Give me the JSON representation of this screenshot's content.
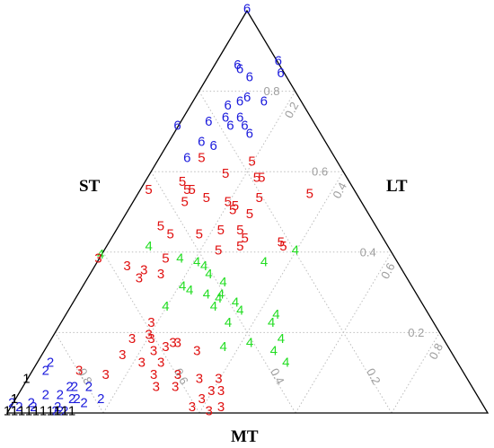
{
  "chart_data": {
    "type": "scatter",
    "subtype": "ternary",
    "title": "",
    "axes": [
      "ST",
      "LT",
      "MT"
    ],
    "vertex_labels": {
      "left": "ST",
      "right": "LT",
      "bottom": "MT"
    },
    "ticks": [
      "0.2",
      "0.4",
      "0.6",
      "0.8"
    ],
    "grid": true,
    "grid_color": "#bdbdbd",
    "tick_color": "#9e9e9e",
    "group_colors": {
      "1": "#000000",
      "2": "#1a1adc",
      "3": "#e01010",
      "4": "#22dd22",
      "5": "#e01010",
      "6": "#1a1adc"
    },
    "note": "",
    "points": [
      {
        "label": "6",
        "top": 1.0,
        "right": 0.0
      },
      {
        "label": "6",
        "top": 0.86,
        "right": 0.05
      },
      {
        "label": "6",
        "top": 0.85,
        "right": 0.06
      },
      {
        "label": "6",
        "top": 0.83,
        "right": 0.09
      },
      {
        "label": "6",
        "top": 0.87,
        "right": 0.13
      },
      {
        "label": "6",
        "top": 0.84,
        "right": 0.15
      },
      {
        "label": "6",
        "top": 0.76,
        "right": 0.08
      },
      {
        "label": "6",
        "top": 0.77,
        "right": 0.1
      },
      {
        "label": "6",
        "top": 0.78,
        "right": 0.11
      },
      {
        "label": "6",
        "top": 0.72,
        "right": 0.06
      },
      {
        "label": "6",
        "top": 0.71,
        "right": 0.11
      },
      {
        "label": "6",
        "top": 0.71,
        "right": 0.14
      },
      {
        "label": "6",
        "top": 0.67,
        "right": 0.07
      },
      {
        "label": "6",
        "top": 0.71,
        "right": 0.0
      },
      {
        "label": "6",
        "top": 0.77,
        "right": 0.15
      },
      {
        "label": "6",
        "top": 0.73,
        "right": 0.09
      },
      {
        "label": "6",
        "top": 0.73,
        "right": 0.12
      },
      {
        "label": "6",
        "top": 0.69,
        "right": 0.16
      },
      {
        "label": "6",
        "top": 0.66,
        "right": 0.1
      },
      {
        "label": "6",
        "top": 0.63,
        "right": 0.06
      },
      {
        "label": "5",
        "top": 0.63,
        "right": 0.09
      },
      {
        "label": "5",
        "top": 0.62,
        "right": 0.2
      },
      {
        "label": "5",
        "top": 0.57,
        "right": 0.08
      },
      {
        "label": "5",
        "top": 0.59,
        "right": 0.16
      },
      {
        "label": "5",
        "top": 0.58,
        "right": 0.23
      },
      {
        "label": "5",
        "top": 0.58,
        "right": 0.24
      },
      {
        "label": "5",
        "top": 0.55,
        "right": 0.02
      },
      {
        "label": "5",
        "top": 0.55,
        "right": 0.1
      },
      {
        "label": "5",
        "top": 0.55,
        "right": 0.11
      },
      {
        "label": "5",
        "top": 0.53,
        "right": 0.26
      },
      {
        "label": "5",
        "top": 0.52,
        "right": 0.11
      },
      {
        "label": "5",
        "top": 0.53,
        "right": 0.15
      },
      {
        "label": "5",
        "top": 0.52,
        "right": 0.2
      },
      {
        "label": "5",
        "top": 0.51,
        "right": 0.22
      },
      {
        "label": "5",
        "top": 0.54,
        "right": 0.36
      },
      {
        "label": "5",
        "top": 0.5,
        "right": 0.22
      },
      {
        "label": "5",
        "top": 0.49,
        "right": 0.26
      },
      {
        "label": "5",
        "top": 0.46,
        "right": 0.09
      },
      {
        "label": "5",
        "top": 0.45,
        "right": 0.22
      },
      {
        "label": "5",
        "top": 0.45,
        "right": 0.26
      },
      {
        "label": "5",
        "top": 0.44,
        "right": 0.12
      },
      {
        "label": "5",
        "top": 0.44,
        "right": 0.18
      },
      {
        "label": "5",
        "top": 0.43,
        "right": 0.28
      },
      {
        "label": "5",
        "top": 0.41,
        "right": 0.28
      },
      {
        "label": "5",
        "top": 0.42,
        "right": 0.36
      },
      {
        "label": "5",
        "top": 0.41,
        "right": 0.37
      },
      {
        "label": "5",
        "top": 0.4,
        "right": 0.24
      },
      {
        "label": "5",
        "top": 0.38,
        "right": 0.14
      },
      {
        "label": "4",
        "top": 0.38,
        "right": 0.17
      },
      {
        "label": "4",
        "top": 0.36,
        "right": 0.23
      },
      {
        "label": "4",
        "top": 0.4,
        "right": 0.4
      },
      {
        "label": "4",
        "top": 0.37,
        "right": 0.21
      },
      {
        "label": "4",
        "top": 0.37,
        "right": 0.35
      },
      {
        "label": "4",
        "top": 0.34,
        "right": 0.25
      },
      {
        "label": "4",
        "top": 0.32,
        "right": 0.29
      },
      {
        "label": "4",
        "top": 0.31,
        "right": 0.21
      },
      {
        "label": "4",
        "top": 0.3,
        "right": 0.23
      },
      {
        "label": "4",
        "top": 0.29,
        "right": 0.27
      },
      {
        "label": "4",
        "top": 0.29,
        "right": 0.3
      },
      {
        "label": "4",
        "top": 0.28,
        "right": 0.3
      },
      {
        "label": "4",
        "top": 0.27,
        "right": 0.34
      },
      {
        "label": "4",
        "top": 0.26,
        "right": 0.2
      },
      {
        "label": "4",
        "top": 0.26,
        "right": 0.3
      },
      {
        "label": "4",
        "top": 0.25,
        "right": 0.36
      },
      {
        "label": "4",
        "top": 0.24,
        "right": 0.44
      },
      {
        "label": "4",
        "top": 0.22,
        "right": 0.35
      },
      {
        "label": "4",
        "top": 0.22,
        "right": 0.44
      },
      {
        "label": "4",
        "top": 0.18,
        "right": 0.48
      },
      {
        "label": "4",
        "top": 0.16,
        "right": 0.37
      },
      {
        "label": "4",
        "top": 0.17,
        "right": 0.42
      },
      {
        "label": "4",
        "top": 0.15,
        "right": 0.48
      },
      {
        "label": "4",
        "top": 0.12,
        "right": 0.52
      },
      {
        "label": "4",
        "top": 0.39,
        "right": 0.0
      },
      {
        "label": "4",
        "top": 0.41,
        "right": 0.09
      },
      {
        "label": "3",
        "top": 0.38,
        "right": 0.0
      },
      {
        "label": "3",
        "top": 0.36,
        "right": 0.07
      },
      {
        "label": "3",
        "top": 0.35,
        "right": 0.11
      },
      {
        "label": "3",
        "top": 0.33,
        "right": 0.11
      },
      {
        "label": "3",
        "top": 0.34,
        "right": 0.15
      },
      {
        "label": "3",
        "top": 0.22,
        "right": 0.19
      },
      {
        "label": "3",
        "top": 0.19,
        "right": 0.2
      },
      {
        "label": "3",
        "top": 0.18,
        "right": 0.17
      },
      {
        "label": "3",
        "top": 0.18,
        "right": 0.21
      },
      {
        "label": "3",
        "top": 0.17,
        "right": 0.26
      },
      {
        "label": "3",
        "top": 0.17,
        "right": 0.27
      },
      {
        "label": "3",
        "top": 0.16,
        "right": 0.25
      },
      {
        "label": "3",
        "top": 0.14,
        "right": 0.17
      },
      {
        "label": "3",
        "top": 0.15,
        "right": 0.23
      },
      {
        "label": "3",
        "top": 0.15,
        "right": 0.32
      },
      {
        "label": "3",
        "top": 0.12,
        "right": 0.22
      },
      {
        "label": "3",
        "top": 0.12,
        "right": 0.26
      },
      {
        "label": "3",
        "top": 0.1,
        "right": 0.1
      },
      {
        "label": "3",
        "top": 0.09,
        "right": 0.16
      },
      {
        "label": "3",
        "top": 0.09,
        "right": 0.26
      },
      {
        "label": "3",
        "top": 0.09,
        "right": 0.31
      },
      {
        "label": "3",
        "top": 0.08,
        "right": 0.36
      },
      {
        "label": "3",
        "top": 0.08,
        "right": 0.4
      },
      {
        "label": "3",
        "top": 0.06,
        "right": 0.28
      },
      {
        "label": "3",
        "top": 0.06,
        "right": 0.32
      },
      {
        "label": "3",
        "top": 0.05,
        "right": 0.4
      },
      {
        "label": "3",
        "top": 0.05,
        "right": 0.42
      },
      {
        "label": "3",
        "top": 0.03,
        "right": 0.39
      },
      {
        "label": "3",
        "top": 0.01,
        "right": 0.38
      },
      {
        "label": "3",
        "top": 0.0,
        "right": 0.42
      },
      {
        "label": "3",
        "top": 0.01,
        "right": 0.44
      },
      {
        "label": "2",
        "top": 0.12,
        "right": 0.03
      },
      {
        "label": "2",
        "top": 0.1,
        "right": 0.03
      },
      {
        "label": "2",
        "top": 0.06,
        "right": 0.1
      },
      {
        "label": "2",
        "top": 0.06,
        "right": 0.11
      },
      {
        "label": "2",
        "top": 0.06,
        "right": 0.14
      },
      {
        "label": "2",
        "top": 0.04,
        "right": 0.06
      },
      {
        "label": "2",
        "top": 0.04,
        "right": 0.09
      },
      {
        "label": "2",
        "top": 0.03,
        "right": 0.12
      },
      {
        "label": "2",
        "top": 0.03,
        "right": 0.13
      },
      {
        "label": "2",
        "top": 0.03,
        "right": 0.18
      },
      {
        "label": "2",
        "top": 0.02,
        "right": 0.15
      },
      {
        "label": "2",
        "top": 0.01,
        "right": 0.02
      },
      {
        "label": "2",
        "top": 0.02,
        "right": 0.0
      },
      {
        "label": "2",
        "top": 0.01,
        "right": 0.05
      },
      {
        "label": "2",
        "top": 0.02,
        "right": 0.04
      },
      {
        "label": "2",
        "top": 0.01,
        "right": 0.1
      },
      {
        "label": "2",
        "top": 0.0,
        "right": 0.1
      },
      {
        "label": "2",
        "top": 0.0,
        "right": 0.11
      },
      {
        "label": "2",
        "top": 0.0,
        "right": 0.12
      },
      {
        "label": "1",
        "top": 0.08,
        "right": 0.0
      },
      {
        "label": "1",
        "top": 0.03,
        "right": 0.0
      },
      {
        "label": "1",
        "top": 0.03,
        "right": 0.0
      },
      {
        "label": "1",
        "top": 0.0,
        "right": 0.0
      },
      {
        "label": "1",
        "top": 0.0,
        "right": 0.0
      },
      {
        "label": "1",
        "top": 0.0,
        "right": 0.0
      },
      {
        "label": "1",
        "top": 0.0,
        "right": 0.0
      },
      {
        "label": "1",
        "top": 0.0,
        "right": 0.0
      },
      {
        "label": "1",
        "top": 0.0,
        "right": 0.0
      },
      {
        "label": "1",
        "top": 0.0,
        "right": 0.0
      },
      {
        "label": "1",
        "top": 0.0,
        "right": 0.0
      },
      {
        "label": "1",
        "top": 0.0,
        "right": 0.0
      },
      {
        "label": "1",
        "top": 0.0,
        "right": 0.0
      },
      {
        "label": "1",
        "top": 0.0,
        "right": 0.0
      }
    ]
  }
}
